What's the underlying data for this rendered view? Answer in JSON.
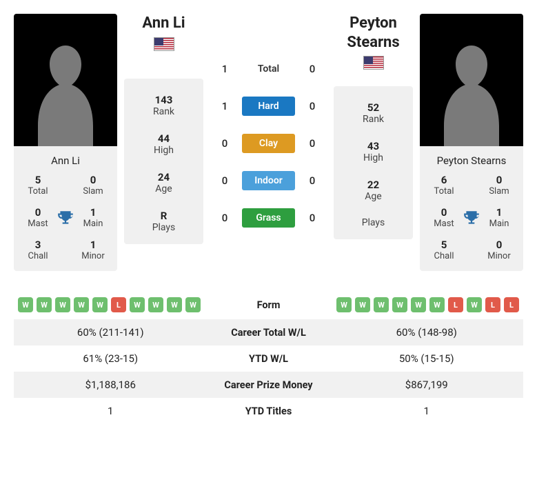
{
  "players": {
    "left": {
      "name": "Ann Li",
      "flag": "us",
      "info": {
        "rank": "143",
        "high": "44",
        "age": "24",
        "plays": "R"
      },
      "titles": {
        "total": "5",
        "slam": "0",
        "mast": "0",
        "main": "1",
        "chall": "3",
        "minor": "1"
      }
    },
    "right": {
      "name": "Peyton Stearns",
      "flag": "us",
      "info": {
        "rank": "52",
        "high": "43",
        "age": "22",
        "plays": ""
      },
      "titles": {
        "total": "6",
        "slam": "0",
        "mast": "0",
        "main": "1",
        "chall": "5",
        "minor": "0"
      }
    }
  },
  "labels": {
    "info": {
      "rank": "Rank",
      "high": "High",
      "age": "Age",
      "plays": "Plays"
    },
    "titles": {
      "total": "Total",
      "slam": "Slam",
      "mast": "Mast",
      "main": "Main",
      "chall": "Chall",
      "minor": "Minor"
    }
  },
  "h2h": {
    "rows": [
      {
        "label": "Total",
        "left": "1",
        "right": "0",
        "class": "surface-total"
      },
      {
        "label": "Hard",
        "left": "1",
        "right": "0",
        "class": "surface-hard"
      },
      {
        "label": "Clay",
        "left": "0",
        "right": "0",
        "class": "surface-clay"
      },
      {
        "label": "Indoor",
        "left": "0",
        "right": "0",
        "class": "surface-indoor"
      },
      {
        "label": "Grass",
        "left": "0",
        "right": "0",
        "class": "surface-grass"
      }
    ]
  },
  "table": {
    "form_label": "Form",
    "form_left": [
      "W",
      "W",
      "W",
      "W",
      "W",
      "L",
      "W",
      "W",
      "W",
      "W"
    ],
    "form_right": [
      "W",
      "W",
      "W",
      "W",
      "W",
      "W",
      "L",
      "W",
      "L",
      "L"
    ],
    "rows": [
      {
        "label": "Career Total W/L",
        "left": "60% (211-141)",
        "right": "60% (148-98)"
      },
      {
        "label": "YTD W/L",
        "left": "61% (23-15)",
        "right": "50% (15-15)"
      },
      {
        "label": "Career Prize Money",
        "left": "$1,188,186",
        "right": "$867,199"
      },
      {
        "label": "YTD Titles",
        "left": "1",
        "right": "1"
      }
    ]
  },
  "colors": {
    "chip_win": "#6ebf6e",
    "chip_loss": "#e15a4a",
    "hard": "#1a78c2",
    "clay": "#dd9a22",
    "indoor": "#4ba0db",
    "grass": "#2e9e3f",
    "trophy": "#2b6ea8"
  }
}
